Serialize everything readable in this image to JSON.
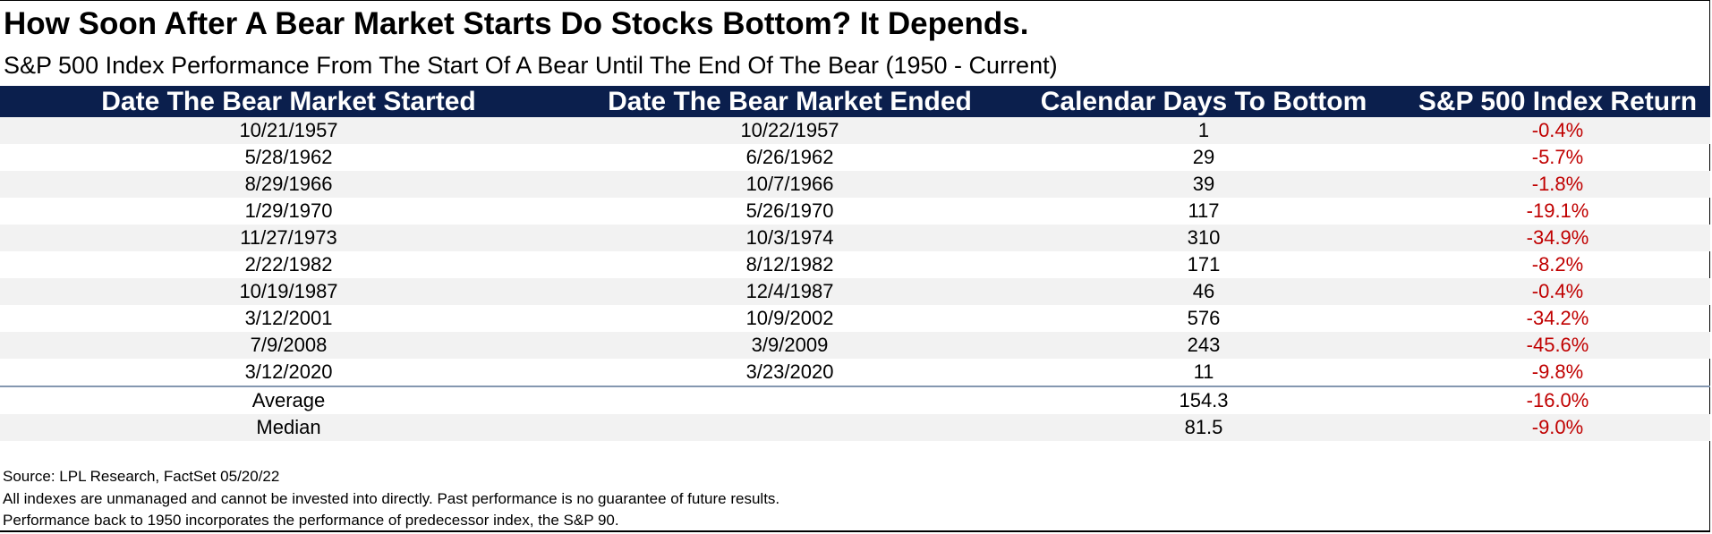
{
  "header": {
    "title": "How Soon After A Bear Market Starts Do Stocks Bottom? It Depends.",
    "subtitle": "S&P 500 Index Performance From The Start Of A Bear Until The End Of The Bear (1950 - Current)"
  },
  "table": {
    "columns": [
      "Date The Bear Market Started",
      "Date The Bear Market Ended",
      "Calendar Days To Bottom",
      "S&P 500 Index Return"
    ],
    "rows": [
      [
        "10/21/1957",
        "10/22/1957",
        "1",
        "-0.4%"
      ],
      [
        "5/28/1962",
        "6/26/1962",
        "29",
        "-5.7%"
      ],
      [
        "8/29/1966",
        "10/7/1966",
        "39",
        "-1.8%"
      ],
      [
        "1/29/1970",
        "5/26/1970",
        "117",
        "-19.1%"
      ],
      [
        "11/27/1973",
        "10/3/1974",
        "310",
        "-34.9%"
      ],
      [
        "2/22/1982",
        "8/12/1982",
        "171",
        "-8.2%"
      ],
      [
        "10/19/1987",
        "12/4/1987",
        "46",
        "-0.4%"
      ],
      [
        "3/12/2001",
        "10/9/2002",
        "576",
        "-34.2%"
      ],
      [
        "7/9/2008",
        "3/9/2009",
        "243",
        "-45.6%"
      ],
      [
        "3/12/2020",
        "3/23/2020",
        "11",
        "-9.8%"
      ]
    ],
    "summary": [
      [
        "Average",
        null,
        "154.3",
        "-16.0%"
      ],
      [
        "Median",
        null,
        "81.5",
        "-9.0%"
      ]
    ]
  },
  "footer": {
    "lines": [
      "Source: LPL Research, FactSet 05/20/22",
      "All indexes are unmanaged and cannot be invested into directly. Past performance is no guarantee of future results.",
      "Performance back to 1950 incorporates the performance of predecessor index, the S&P 90."
    ]
  }
}
